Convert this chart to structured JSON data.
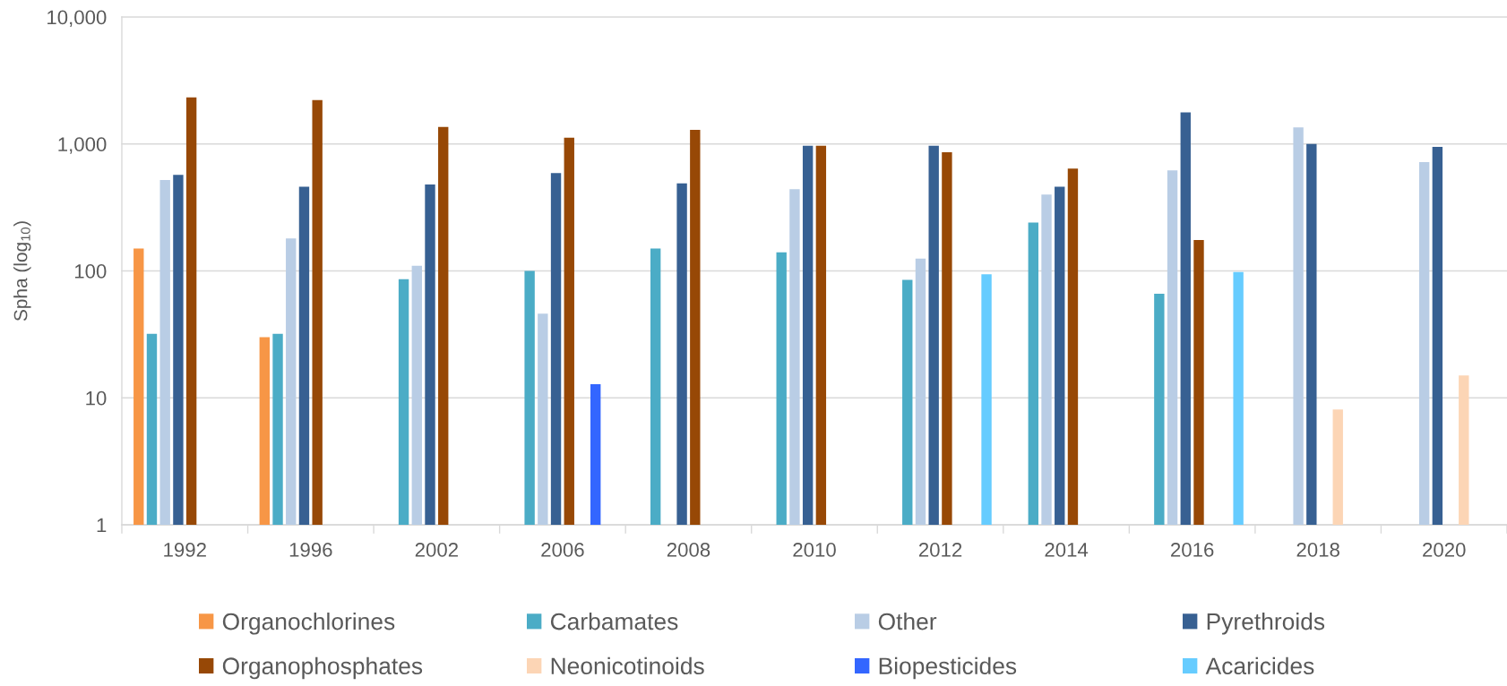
{
  "chart_data": {
    "type": "bar",
    "ylabel": "Spha (log$_{10}$)",
    "categories": [
      "1992",
      "1996",
      "2002",
      "2006",
      "2008",
      "2010",
      "2012",
      "2014",
      "2016",
      "2018",
      "2020"
    ],
    "series": [
      {
        "name": "Organochlorines",
        "color": "#f79646",
        "values": [
          150,
          30,
          null,
          null,
          null,
          null,
          null,
          null,
          null,
          null,
          null
        ]
      },
      {
        "name": "Carbamates",
        "color": "#4bacc6",
        "values": [
          32,
          32,
          86,
          100,
          150,
          140,
          85,
          240,
          66,
          null,
          null
        ]
      },
      {
        "name": "Other",
        "color": "#b9cde5",
        "values": [
          520,
          180,
          110,
          46,
          null,
          440,
          125,
          400,
          620,
          1350,
          720
        ]
      },
      {
        "name": "Pyrethroids",
        "color": "#376092",
        "values": [
          570,
          460,
          480,
          590,
          490,
          970,
          970,
          460,
          1770,
          1000,
          950
        ]
      },
      {
        "name": "Organophosphates",
        "color": "#974806",
        "values": [
          2330,
          2220,
          1360,
          1120,
          1290,
          970,
          860,
          640,
          175,
          null,
          null
        ]
      },
      {
        "name": "Neonicotinoids",
        "color": "#fcd5b5",
        "values": [
          null,
          null,
          null,
          null,
          null,
          null,
          null,
          null,
          null,
          8.1,
          15
        ]
      },
      {
        "name": "Biopesticides",
        "color": "#3366ff",
        "values": [
          null,
          null,
          null,
          12.8,
          null,
          null,
          null,
          null,
          null,
          null,
          null
        ]
      },
      {
        "name": "Acaricides",
        "color": "#66ccff",
        "values": [
          null,
          null,
          null,
          null,
          null,
          null,
          94,
          null,
          98,
          null,
          null
        ]
      }
    ],
    "log": true,
    "ylim": [
      1,
      10000
    ],
    "yticks": [
      1,
      10,
      100,
      {
        "value": 1000,
        "label": "1,000"
      },
      {
        "value": 10000,
        "label": "10,000"
      }
    ],
    "grid": "y",
    "legend": "bottom"
  }
}
